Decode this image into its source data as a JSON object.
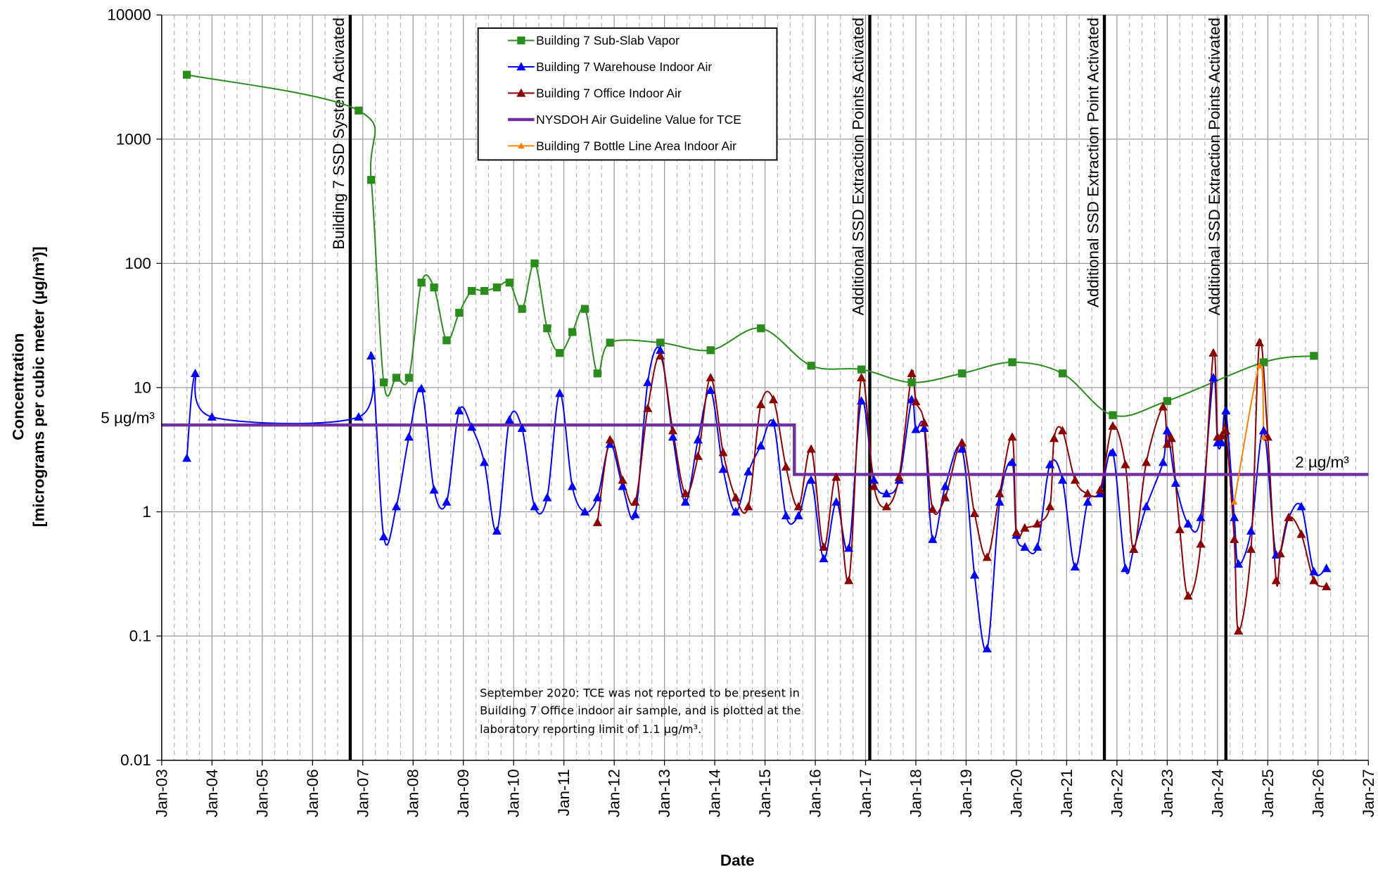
{
  "chart_data": {
    "type": "line",
    "xlabel": "Date",
    "ylabel": [
      "Concentration",
      "[micrograms per cubic meter (µg/m³)]"
    ],
    "xscale": "time",
    "yscale": "log",
    "grid": true,
    "xlim": [
      "2003-01",
      "2027-01"
    ],
    "ylim": [
      0.01,
      10000
    ],
    "yticks": [
      0.01,
      0.1,
      1,
      10,
      100,
      1000,
      10000
    ],
    "xticks": [
      {
        "value": "2003-01",
        "label": "Jan-03"
      },
      {
        "value": "2004-01",
        "label": "Jan-04"
      },
      {
        "value": "2005-01",
        "label": "Jan-05"
      },
      {
        "value": "2006-01",
        "label": "Jan-06"
      },
      {
        "value": "2007-01",
        "label": "Jan-07"
      },
      {
        "value": "2008-01",
        "label": "Jan-08"
      },
      {
        "value": "2009-01",
        "label": "Jan-09"
      },
      {
        "value": "2010-01",
        "label": "Jan-10"
      },
      {
        "value": "2011-01",
        "label": "Jan-11"
      },
      {
        "value": "2012-01",
        "label": "Jan-12"
      },
      {
        "value": "2013-01",
        "label": "Jan-13"
      },
      {
        "value": "2014-01",
        "label": "Jan-14"
      },
      {
        "value": "2015-01",
        "label": "Jan-15"
      },
      {
        "value": "2016-01",
        "label": "Jan-16"
      },
      {
        "value": "2017-01",
        "label": "Jan-17"
      },
      {
        "value": "2018-01",
        "label": "Jan-18"
      },
      {
        "value": "2019-01",
        "label": "Jan-19"
      },
      {
        "value": "2020-01",
        "label": "Jan-20"
      },
      {
        "value": "2021-01",
        "label": "Jan-21"
      },
      {
        "value": "2022-01",
        "label": "Jan-22"
      },
      {
        "value": "2023-01",
        "label": "Jan-23"
      },
      {
        "value": "2024-01",
        "label": "Jan-24"
      },
      {
        "value": "2025-01",
        "label": "Jan-25"
      },
      {
        "value": "2026-01",
        "label": "Jan-26"
      },
      {
        "value": "2027-01",
        "label": "Jan-27"
      }
    ],
    "series": [
      {
        "name": "Building 7 Sub-Slab Vapor",
        "color": "#2b8c1e",
        "marker": "square",
        "x": [
          "2003-07",
          "2006-12",
          "2007-03",
          "2007-06",
          "2007-09",
          "2007-12",
          "2008-03",
          "2008-06",
          "2008-09",
          "2008-12",
          "2009-03",
          "2009-06",
          "2009-09",
          "2009-12",
          "2010-03",
          "2010-06",
          "2010-09",
          "2010-12",
          "2011-03",
          "2011-06",
          "2011-09",
          "2011-12",
          "2012-12",
          "2013-12",
          "2014-12",
          "2015-12",
          "2016-12",
          "2017-12",
          "2018-12",
          "2019-12",
          "2020-12",
          "2021-12",
          "2023-01",
          "2024-12",
          "2025-12"
        ],
        "values": [
          3300,
          1700,
          470,
          11,
          12,
          12,
          70,
          64,
          24,
          40,
          60,
          60,
          64,
          70,
          43,
          100,
          30,
          19,
          28,
          43,
          13,
          23,
          23,
          20,
          30,
          15,
          14,
          11,
          13,
          16,
          13,
          6,
          7.8,
          16,
          18
        ]
      },
      {
        "name": "Building 7 Warehouse Indoor Air",
        "color": "#0000ff",
        "marker": "triangle",
        "x": [
          "2003-07",
          "2003-09",
          "2004-01",
          "2006-12",
          "2007-03",
          "2007-06",
          "2007-09",
          "2007-12",
          "2008-03",
          "2008-06",
          "2008-09",
          "2008-12",
          "2009-03",
          "2009-06",
          "2009-09",
          "2009-12",
          "2010-03",
          "2010-06",
          "2010-09",
          "2010-12",
          "2011-03",
          "2011-06",
          "2011-09",
          "2011-12",
          "2012-03",
          "2012-06",
          "2012-09",
          "2012-12",
          "2013-03",
          "2013-06",
          "2013-09",
          "2013-12",
          "2014-03",
          "2014-06",
          "2014-09",
          "2014-12",
          "2015-03",
          "2015-06",
          "2015-09",
          "2015-12",
          "2016-03",
          "2016-06",
          "2016-09",
          "2016-12",
          "2017-03",
          "2017-06",
          "2017-09",
          "2017-12",
          "2018-01",
          "2018-03",
          "2018-05",
          "2018-08",
          "2018-12",
          "2019-03",
          "2019-06",
          "2019-09",
          "2019-12",
          "2020-01",
          "2020-03",
          "2020-06",
          "2020-09",
          "2020-12",
          "2021-03",
          "2021-06",
          "2021-09",
          "2021-12",
          "2022-03",
          "2022-05",
          "2022-08",
          "2022-12",
          "2023-01",
          "2023-03",
          "2023-06",
          "2023-09",
          "2023-12",
          "2024-01",
          "2024-02",
          "2024-03",
          "2024-05",
          "2024-06",
          "2024-09",
          "2024-12",
          "2025-03",
          "2025-06",
          "2025-09",
          "2025-12",
          "2026-03"
        ],
        "values": [
          2.7,
          13,
          5.8,
          5.8,
          18,
          0.63,
          1.1,
          4,
          9.8,
          1.5,
          1.2,
          6.5,
          4.8,
          2.5,
          0.7,
          5.5,
          4.7,
          1.1,
          1.3,
          9,
          1.6,
          1,
          1.3,
          3.5,
          1.6,
          0.95,
          11,
          20,
          4,
          1.2,
          3.8,
          9.5,
          2.2,
          1,
          2.1,
          3.4,
          5.2,
          0.93,
          0.93,
          1.8,
          0.42,
          1.2,
          0.51,
          7.8,
          1.8,
          1.4,
          1.8,
          8,
          4.6,
          4.7,
          0.6,
          1.6,
          3.2,
          0.31,
          0.079,
          1.2,
          2.5,
          0.65,
          0.52,
          0.52,
          2.4,
          1.8,
          0.36,
          1.2,
          1.4,
          3,
          0.35,
          0.5,
          1.1,
          2.5,
          4.5,
          1.7,
          0.8,
          0.9,
          12,
          3.6,
          3.6,
          6.5,
          0.9,
          0.38,
          0.7,
          4.5,
          0.45,
          0.9,
          1.1,
          0.33,
          0.35
        ]
      },
      {
        "name": "Building 7 Office Indoor Air",
        "color": "#8b0000",
        "marker": "triangle",
        "x": [
          "2011-09",
          "2011-12",
          "2012-03",
          "2012-06",
          "2012-09",
          "2012-12",
          "2013-03",
          "2013-06",
          "2013-09",
          "2013-12",
          "2014-03",
          "2014-06",
          "2014-09",
          "2014-12",
          "2015-03",
          "2015-06",
          "2015-09",
          "2015-12",
          "2016-03",
          "2016-06",
          "2016-09",
          "2016-12",
          "2017-03",
          "2017-06",
          "2017-09",
          "2017-12",
          "2018-01",
          "2018-03",
          "2018-05",
          "2018-08",
          "2018-12",
          "2019-03",
          "2019-06",
          "2019-09",
          "2019-12",
          "2020-01",
          "2020-03",
          "2020-06",
          "2020-09",
          "2020-10",
          "2020-12",
          "2021-03",
          "2021-06",
          "2021-09",
          "2021-12",
          "2022-03",
          "2022-05",
          "2022-08",
          "2022-12",
          "2023-01",
          "2023-02",
          "2023-04",
          "2023-06",
          "2023-09",
          "2023-12",
          "2024-01",
          "2024-02",
          "2024-03",
          "2024-05",
          "2024-06",
          "2024-09",
          "2024-11",
          "2025-01",
          "2025-03",
          "2025-04",
          "2025-06",
          "2025-09",
          "2025-12",
          "2026-03"
        ],
        "values": [
          0.82,
          3.8,
          1.8,
          1.2,
          6.8,
          18,
          4.5,
          1.4,
          2.8,
          12,
          3,
          1.3,
          1.1,
          7.3,
          8,
          2.3,
          1.1,
          3.2,
          0.52,
          1.9,
          0.28,
          12,
          1.6,
          1.1,
          1.9,
          13,
          7.7,
          5.2,
          1.05,
          1.3,
          3.6,
          0.97,
          0.43,
          1.4,
          4,
          0.68,
          0.74,
          0.8,
          1.1,
          3.9,
          4.5,
          1.8,
          1.4,
          1.5,
          4.9,
          2.4,
          0.5,
          2.5,
          7,
          3.5,
          3.9,
          0.72,
          0.21,
          0.55,
          19,
          4,
          4.1,
          4.5,
          0.6,
          0.11,
          0.5,
          23,
          4,
          0.28,
          0.46,
          0.9,
          0.66,
          0.28,
          0.25
        ]
      },
      {
        "name": "NYSDOH Air Guideline Value for TCE",
        "color": "#7030a0",
        "marker": "none",
        "x": [
          "2003-01",
          "2015-08",
          "2015-08",
          "2027-01"
        ],
        "values": [
          5,
          5,
          2,
          2
        ]
      },
      {
        "name": "Building 7 Bottle Line Area Indoor Air",
        "color": "#ff8000",
        "marker": "small-triangle",
        "x": [
          "2024-05",
          "2024-11",
          "2024-12"
        ],
        "values": [
          1.2,
          15,
          4
        ]
      }
    ],
    "guideline_labels": [
      "5 µg/m³",
      "2 µg/m³"
    ],
    "annotations": [
      {
        "x": "2006-10",
        "text": "Building 7 SSD System Activated"
      },
      {
        "x": "2017-02",
        "text": "Additional SSD Extraction Points Activated"
      },
      {
        "x": "2021-10",
        "text": "Additional SSD Extraction Point Activated"
      },
      {
        "x": "2024-03",
        "text": "Additional SSD Extraction Points Activated"
      }
    ],
    "note": [
      "September 2020: TCE was not reported to be present in",
      "Building 7 Office indoor air sample, and is plotted at the",
      "laboratory reporting limit of 1.1 µg/m³."
    ]
  }
}
